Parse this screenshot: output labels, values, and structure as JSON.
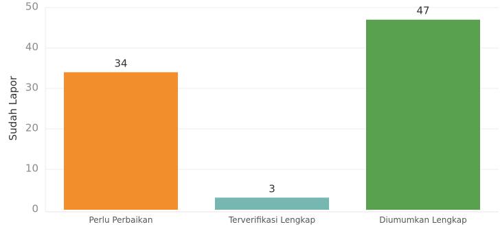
{
  "chart_data": {
    "type": "bar",
    "categories": [
      "Perlu Perbaikan",
      "Terverifikasi Lengkap",
      "Diumumkan Lengkap"
    ],
    "values": [
      34,
      3,
      47
    ],
    "data_labels": [
      "34",
      "3",
      "47"
    ],
    "colors": [
      "#f28e2b",
      "#76b7b2",
      "#59a14f"
    ],
    "ylabel": "Sudah Lapor",
    "xlabel": "",
    "ylim": [
      0,
      50
    ],
    "yticks": [
      "0",
      "10",
      "20",
      "30",
      "40",
      "50"
    ],
    "grid": true
  }
}
